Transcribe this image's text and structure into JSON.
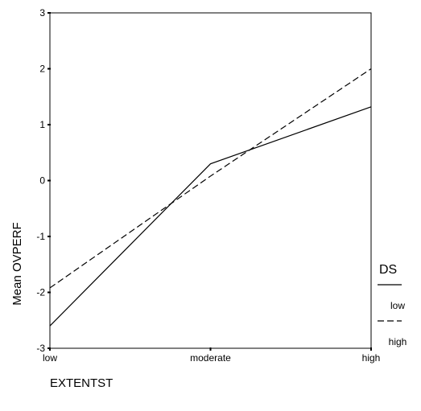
{
  "chart_data": {
    "type": "line",
    "title": "",
    "xlabel": "EXTENTST",
    "ylabel": "Mean OVPERF",
    "categories": [
      "low",
      "moderate",
      "high"
    ],
    "ylim": [
      -3,
      3
    ],
    "yticks": [
      -3,
      -2,
      -1,
      0,
      1,
      2,
      3
    ],
    "grid": false,
    "legend": {
      "title": "DS",
      "placement": "right",
      "entries": [
        "low",
        "high"
      ]
    },
    "series": [
      {
        "name": "low",
        "values": [
          -2.6,
          0.3,
          1.32
        ],
        "line_style": "solid",
        "color": "#000000"
      },
      {
        "name": "high",
        "values": [
          -1.92,
          0.08,
          2.0
        ],
        "line_style": "dashed",
        "color": "#000000"
      }
    ]
  }
}
